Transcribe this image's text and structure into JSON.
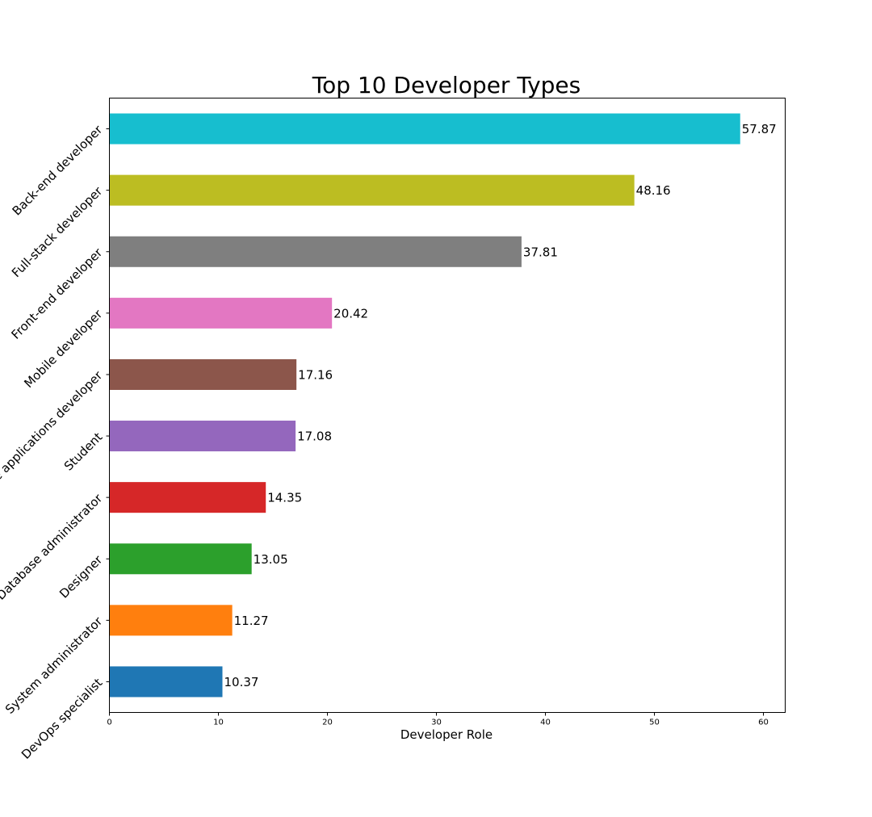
{
  "chart_data": {
    "type": "bar",
    "orientation": "horizontal",
    "title": "Top 10 Developer Types",
    "xlabel": "Developer Role",
    "ylabel": "",
    "categories": [
      "Back-end developer",
      "Full-stack developer",
      "Front-end developer",
      "Mobile developer",
      "Desktop or enterprise applications developer",
      "Student",
      "Database administrator",
      "Designer",
      "System administrator",
      "DevOps specialist"
    ],
    "values": [
      57.87,
      48.16,
      37.81,
      20.42,
      17.16,
      17.08,
      14.35,
      13.05,
      11.27,
      10.37
    ],
    "value_labels": [
      "57.87",
      "48.16",
      "37.81",
      "20.42",
      "17.16",
      "17.08",
      "14.35",
      "13.05",
      "11.27",
      "10.37"
    ],
    "colors": [
      "#17becf",
      "#bcbd22",
      "#7f7f7f",
      "#e377c2",
      "#8c564b",
      "#9467bd",
      "#d62728",
      "#2ca02c",
      "#ff7f0e",
      "#1f77b4"
    ],
    "xlim": [
      0,
      62
    ],
    "xticks": [
      0,
      10,
      20,
      30,
      40,
      50,
      60
    ],
    "xtick_labels": [
      "0",
      "10",
      "20",
      "30",
      "40",
      "50",
      "60"
    ],
    "grid": false,
    "legend": "none"
  }
}
